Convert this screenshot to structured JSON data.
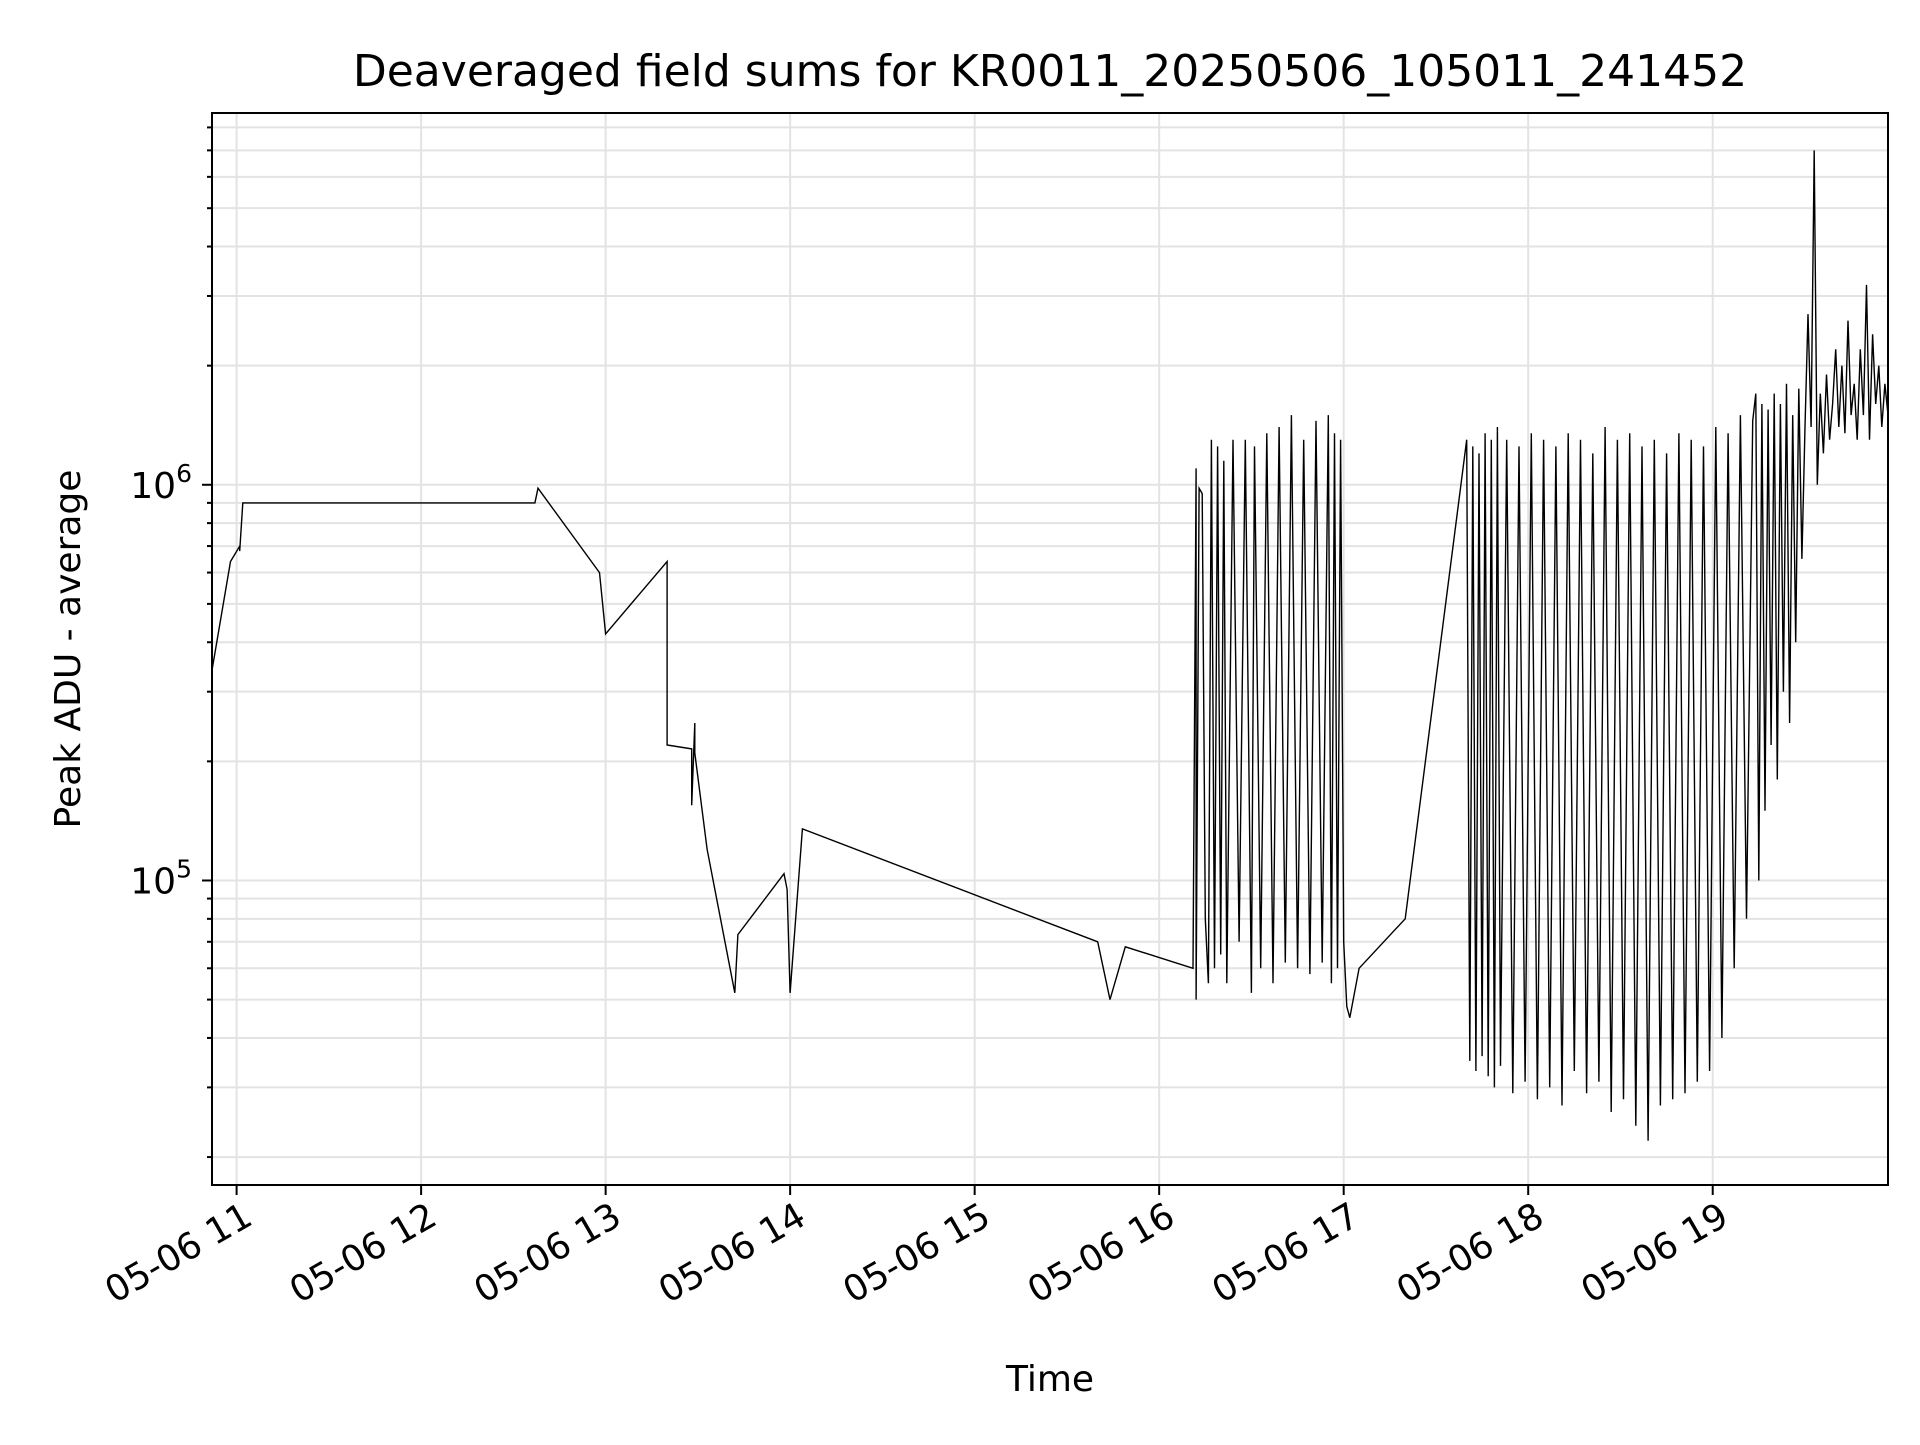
{
  "chart_data": {
    "type": "line",
    "title": "Deaveraged field sums for KR0011_20250506_105011_241452",
    "xlabel": "Time",
    "ylabel": "Peak ADU - average",
    "yscale": "log",
    "xlim": [
      "2025-05-06 10:52",
      "2025-05-06 19:57"
    ],
    "ylim": [
      17000,
      8700000
    ],
    "grid": true,
    "grid_minor_y": true,
    "colors": {
      "line": "#000000",
      "grid": "#e3e3e3",
      "frame": "#000000"
    },
    "x_ticks": [
      "05-06 11",
      "05-06 12",
      "05-06 13",
      "05-06 14",
      "05-06 15",
      "05-06 16",
      "05-06 17",
      "05-06 18",
      "05-06 19"
    ],
    "y_ticks": [
      {
        "value": 100000,
        "base": "10",
        "exp": "5"
      },
      {
        "value": 1000000,
        "base": "10",
        "exp": "6"
      }
    ],
    "series": [
      {
        "values_note_units": "x = time on 2025-05-06 (HH:MM), y = Peak ADU - average",
        "x": [
          "10:52",
          "10:58",
          "11:01",
          "11:01",
          "11:02",
          "11:02",
          "11:03",
          "12:37",
          "12:38",
          "12:58",
          "13:00",
          "13:20",
          "13:20",
          "13:28",
          "13:28",
          "13:29",
          "13:29",
          "13:33",
          "13:42",
          "13:43",
          "13:58",
          "13:59",
          "14:00",
          "14:04",
          "15:40",
          "15:44",
          "15:49",
          "16:11",
          "16:12",
          "16:12",
          "16:13",
          "16:14",
          "16:15",
          "16:16",
          "16:17",
          "16:18",
          "16:19",
          "16:20",
          "16:21",
          "16:22",
          "16:24",
          "16:26",
          "16:28",
          "16:30",
          "16:31",
          "16:33",
          "16:35",
          "16:37",
          "16:39",
          "16:41",
          "16:43",
          "16:45",
          "16:47",
          "16:49",
          "16:51",
          "16:53",
          "16:55",
          "16:56",
          "16:57",
          "16:58",
          "16:59",
          "17:00",
          "17:01",
          "17:02",
          "17:05",
          "17:20",
          "17:40",
          "17:41",
          "17:42",
          "17:43",
          "17:44",
          "17:45",
          "17:46",
          "17:47",
          "17:48",
          "17:49",
          "17:50",
          "17:51",
          "17:53",
          "17:55",
          "17:57",
          "17:59",
          "18:01",
          "18:03",
          "18:05",
          "18:07",
          "18:09",
          "18:11",
          "18:13",
          "18:15",
          "18:17",
          "18:19",
          "18:21",
          "18:23",
          "18:25",
          "18:27",
          "18:29",
          "18:31",
          "18:33",
          "18:35",
          "18:37",
          "18:39",
          "18:41",
          "18:43",
          "18:45",
          "18:47",
          "18:49",
          "18:51",
          "18:53",
          "18:55",
          "18:57",
          "18:59",
          "19:01",
          "19:03",
          "19:05",
          "19:07",
          "19:09",
          "19:11",
          "19:13",
          "19:14",
          "19:15",
          "19:16",
          "19:17",
          "19:18",
          "19:19",
          "19:20",
          "19:21",
          "19:22",
          "19:23",
          "19:24",
          "19:25",
          "19:26",
          "19:27",
          "19:28",
          "19:29",
          "19:30",
          "19:31",
          "19:32",
          "19:33",
          "19:34",
          "19:35",
          "19:36",
          "19:37",
          "19:38",
          "19:39",
          "19:40",
          "19:41",
          "19:42",
          "19:43",
          "19:44",
          "19:45",
          "19:46",
          "19:47",
          "19:48",
          "19:49",
          "19:50",
          "19:51",
          "19:52",
          "19:53",
          "19:54",
          "19:55",
          "19:56",
          "19:57"
        ],
        "y": [
          340000,
          640000,
          700000,
          680000,
          900000,
          900000,
          900000,
          900000,
          980000,
          600000,
          420000,
          640000,
          220000,
          215000,
          155000,
          250000,
          210000,
          120000,
          52000,
          73000,
          104000,
          95000,
          52000,
          135000,
          70000,
          50000,
          68000,
          60000,
          1100000,
          50000,
          980000,
          950000,
          80000,
          55000,
          1300000,
          60000,
          1250000,
          65000,
          1150000,
          55000,
          1300000,
          70000,
          1300000,
          52000,
          1250000,
          60000,
          1350000,
          55000,
          1400000,
          62000,
          1500000,
          60000,
          1300000,
          58000,
          1450000,
          62000,
          1500000,
          55000,
          1350000,
          60000,
          1300000,
          70000,
          48000,
          45000,
          60000,
          80000,
          1300000,
          35000,
          1250000,
          33000,
          1200000,
          36000,
          1350000,
          32000,
          1300000,
          30000,
          1400000,
          34000,
          1300000,
          29000,
          1250000,
          31000,
          1350000,
          28000,
          1300000,
          30000,
          1250000,
          27000,
          1350000,
          33000,
          1300000,
          29000,
          1200000,
          31000,
          1400000,
          26000,
          1300000,
          28000,
          1350000,
          24000,
          1250000,
          22000,
          1300000,
          27000,
          1200000,
          28000,
          1350000,
          29000,
          1300000,
          31000,
          1250000,
          33000,
          1400000,
          40000,
          1350000,
          60000,
          1500000,
          80000,
          1450000,
          1700000,
          100000,
          1600000,
          150000,
          1550000,
          220000,
          1700000,
          180000,
          1600000,
          300000,
          1800000,
          250000,
          1500000,
          400000,
          1750000,
          650000,
          1400000,
          2700000,
          1400000,
          7000000,
          1000000,
          1700000,
          1200000,
          1900000,
          1300000,
          1600000,
          2200000,
          1400000,
          2000000,
          1350000,
          2600000,
          1500000,
          1800000,
          1300000,
          2200000,
          1500000,
          3200000,
          1300000,
          2400000,
          1600000,
          2000000,
          1400000,
          1800000,
          1500000
        ]
      }
    ]
  }
}
